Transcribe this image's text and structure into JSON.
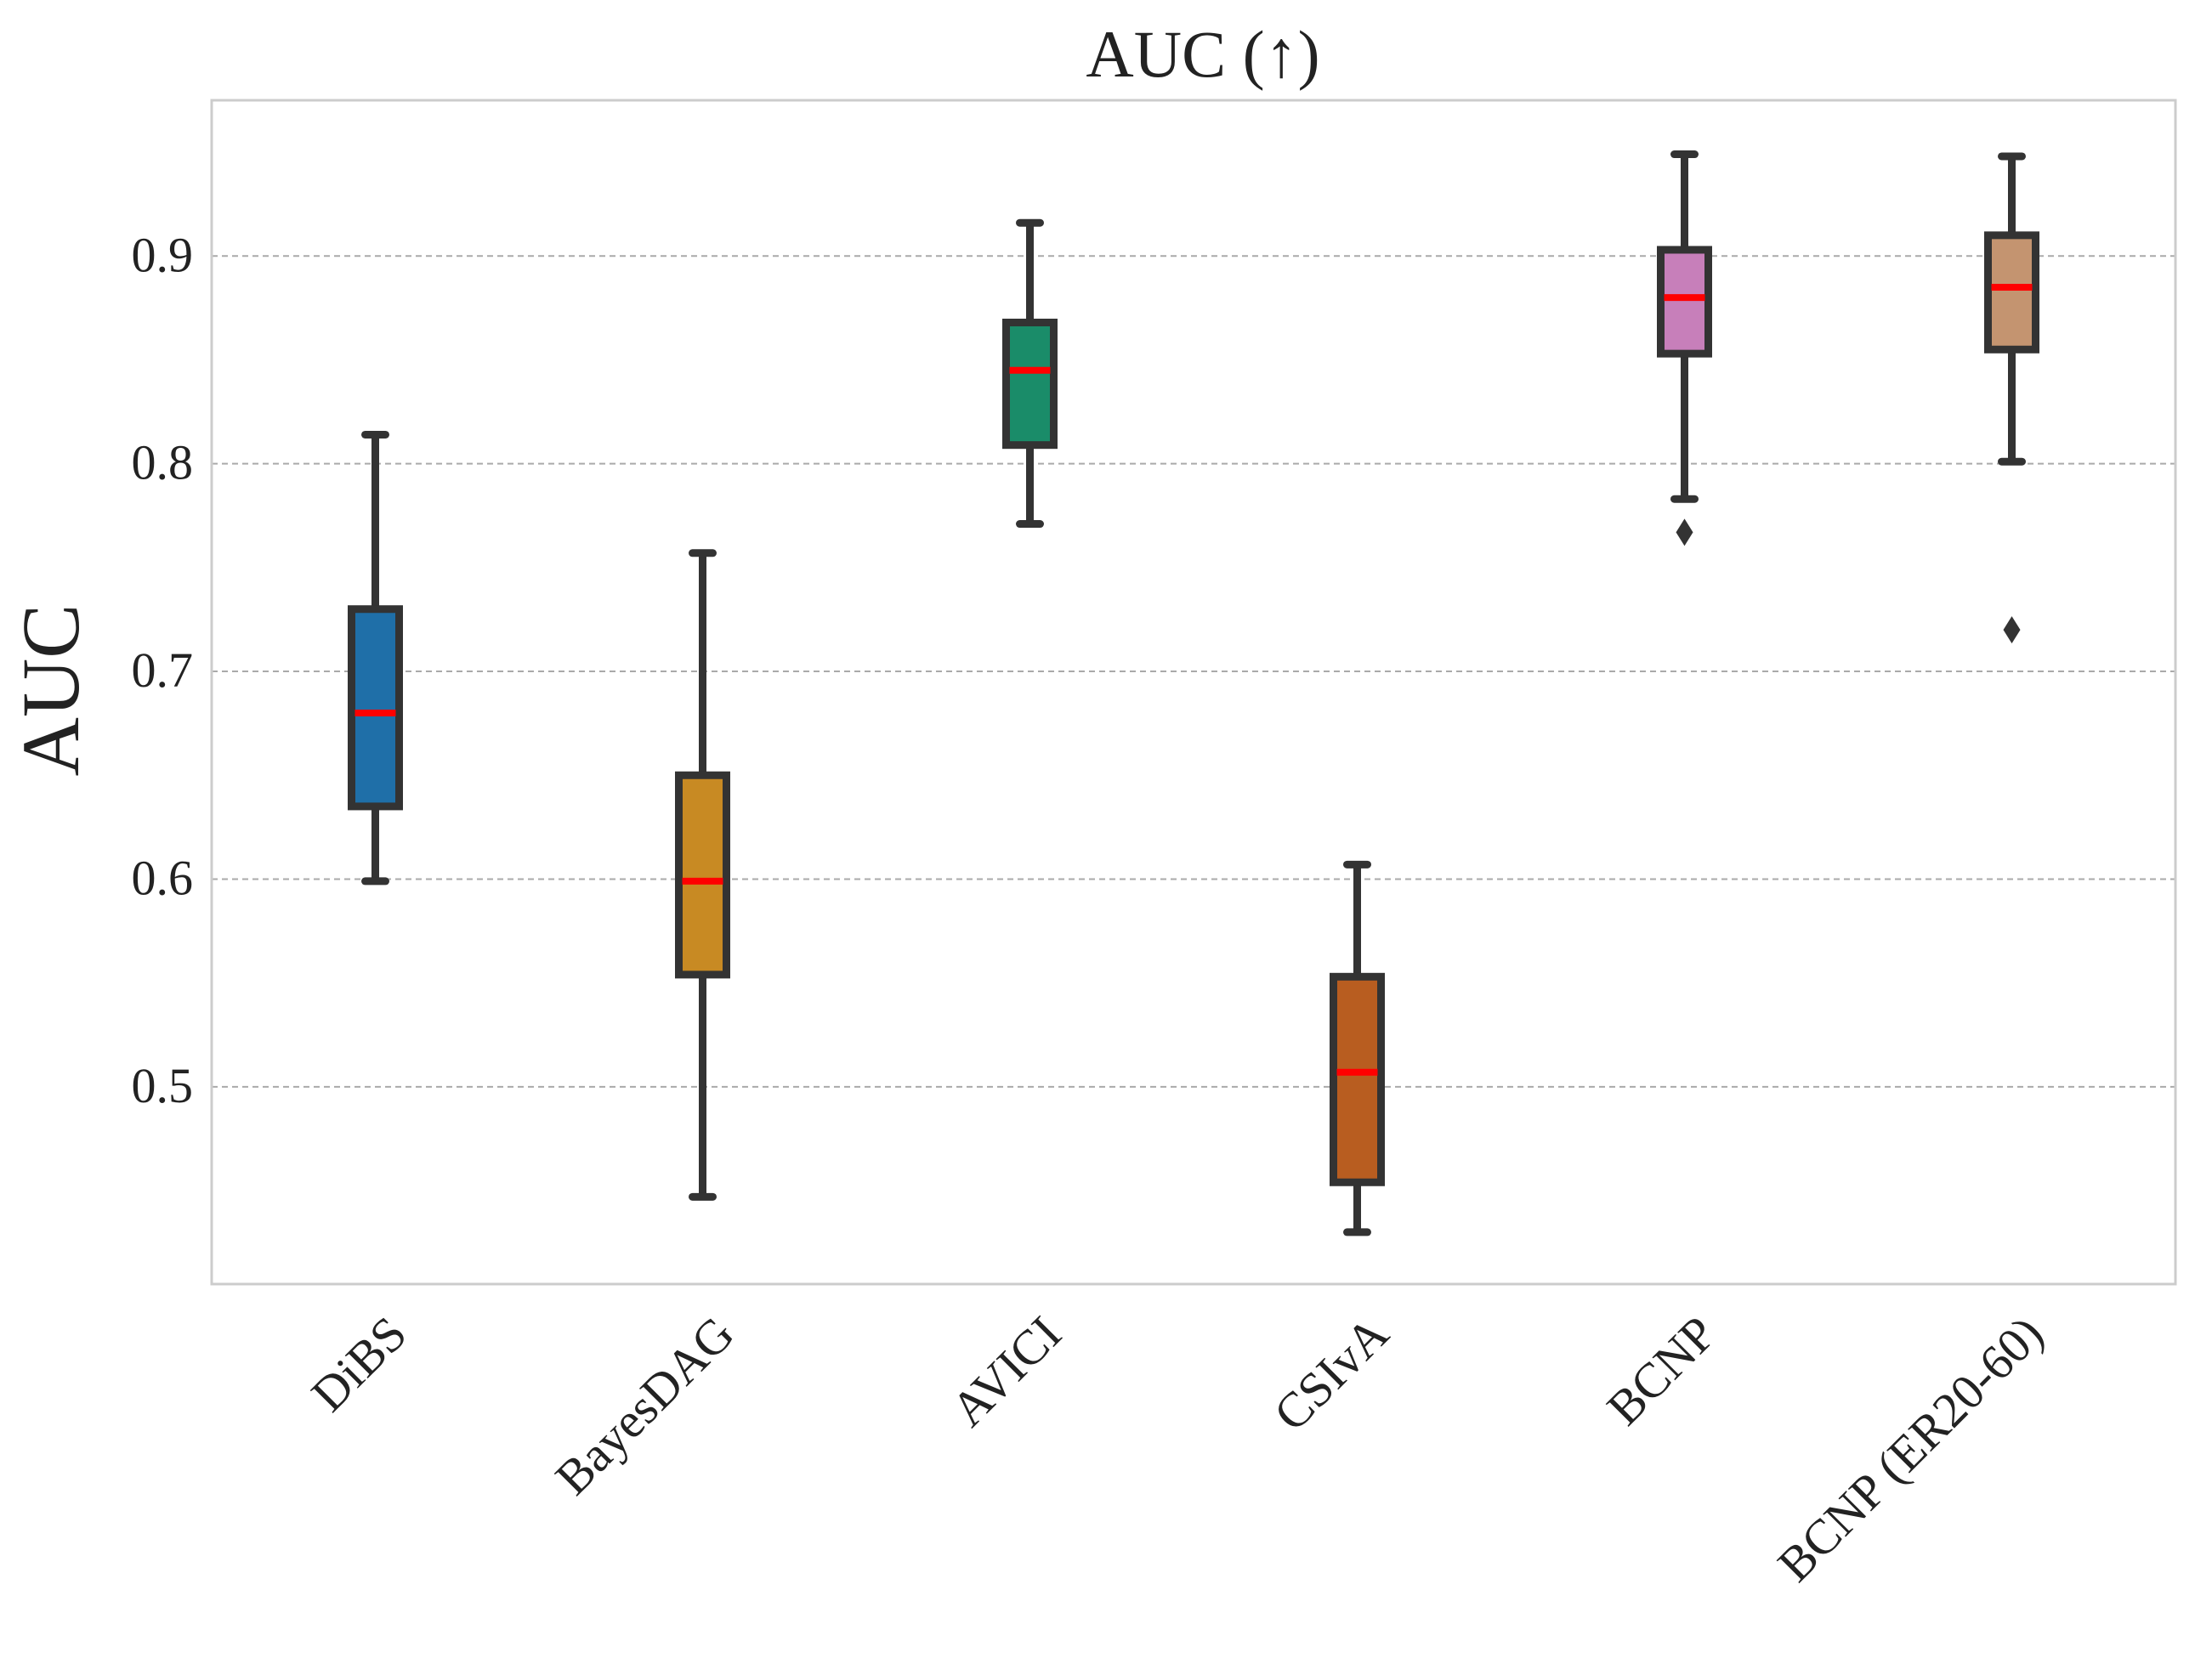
{
  "chart_data": {
    "type": "box",
    "title": "AUC (↑)",
    "ylabel": "AUC",
    "xlabel": "",
    "ylim": [
      0.405,
      0.975
    ],
    "yticks": [
      0.5,
      0.6,
      0.7,
      0.8,
      0.9
    ],
    "ytick_labels": [
      "0.5",
      "0.6",
      "0.7",
      "0.8",
      "0.9"
    ],
    "grid": "horizontal-dashed",
    "categories": [
      "DiBS",
      "BayesDAG",
      "AVICI",
      "CSIvA",
      "BCNP",
      "BCNP (ER20-60)"
    ],
    "boxes": [
      {
        "name": "DiBS",
        "whisker_low": 0.599,
        "q1": 0.635,
        "median": 0.68,
        "q3": 0.73,
        "whisker_high": 0.814,
        "outliers": []
      },
      {
        "name": "BayesDAG",
        "whisker_low": 0.447,
        "q1": 0.554,
        "median": 0.599,
        "q3": 0.65,
        "whisker_high": 0.757,
        "outliers": []
      },
      {
        "name": "AVICI",
        "whisker_low": 0.771,
        "q1": 0.809,
        "median": 0.845,
        "q3": 0.868,
        "whisker_high": 0.916,
        "outliers": []
      },
      {
        "name": "CSIvA",
        "whisker_low": 0.43,
        "q1": 0.454,
        "median": 0.507,
        "q3": 0.553,
        "whisker_high": 0.607,
        "outliers": []
      },
      {
        "name": "BCNP",
        "whisker_low": 0.783,
        "q1": 0.853,
        "median": 0.88,
        "q3": 0.903,
        "whisker_high": 0.949,
        "outliers": [
          0.767
        ]
      },
      {
        "name": "BCNP (ER20-60)",
        "whisker_low": 0.801,
        "q1": 0.855,
        "median": 0.885,
        "q3": 0.91,
        "whisker_high": 0.948,
        "outliers": [
          0.72
        ]
      }
    ],
    "colors": {
      "box_fills": [
        "#1f6fa8",
        "#c88a23",
        "#1a8c69",
        "#b85d20",
        "#c77fba",
        "#c49470"
      ],
      "median": "#ff0000",
      "outline": "#333333",
      "grid": "#aaaaaa",
      "frame": "#cccccc"
    }
  }
}
